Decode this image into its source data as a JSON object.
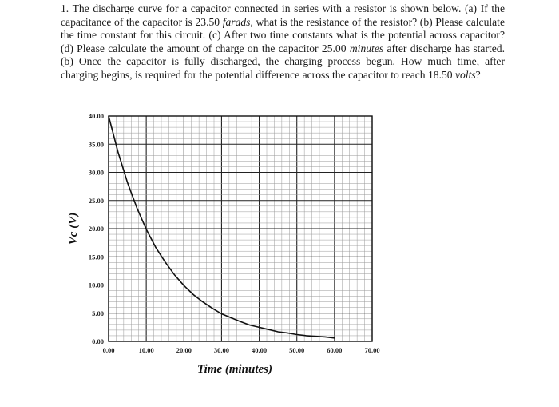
{
  "problem": {
    "p1": "1. The discharge curve for a capacitor connected in series with a resistor is shown below. (a) If the capacitance of the capacitor is 23.50 ",
    "farads": "farads",
    "p2": ", what is the resistance of the resistor? (b) Please calculate the time constant for this circuit. (c) After two time constants what is the potential across capacitor? (d) Please calculate the amount of charge on the capacitor 25.00 ",
    "minutes": "minutes",
    "p3": " after discharge has started. (b) Once the capacitor is fully discharged, the charging process begun. How much time, after charging begins, is required for the potential difference across the capacitor to reach 18.50 ",
    "volts": "volts",
    "p4": "?"
  },
  "chart_data": {
    "type": "line",
    "xlabel": "Time (minutes)",
    "ylabel": "Vc (V)",
    "xlim": [
      0,
      70
    ],
    "ylim": [
      0,
      40
    ],
    "x_ticks": [
      "0.00",
      "10.00",
      "20.00",
      "30.00",
      "40.00",
      "50.00",
      "60.00",
      "70.00"
    ],
    "y_ticks": [
      "0.00",
      "5.00",
      "10.00",
      "15.00",
      "20.00",
      "25.00",
      "30.00",
      "35.00",
      "40.00"
    ],
    "grid": true,
    "series": [
      {
        "x": [
          0,
          2.5,
          5,
          7.5,
          10,
          12.5,
          15,
          17.5,
          20,
          22.5,
          25,
          27.5,
          30,
          32.5,
          35,
          37.5,
          40,
          42.5,
          45,
          47.5,
          50,
          52.5,
          55,
          57.5,
          60
        ],
        "values": [
          40.0,
          33.6,
          28.2,
          23.7,
          19.9,
          16.7,
          14.1,
          11.8,
          9.9,
          8.3,
          7.0,
          5.9,
          4.9,
          4.2,
          3.5,
          2.9,
          2.5,
          2.1,
          1.7,
          1.5,
          1.2,
          1.0,
          0.9,
          0.8,
          0.6
        ]
      }
    ]
  }
}
